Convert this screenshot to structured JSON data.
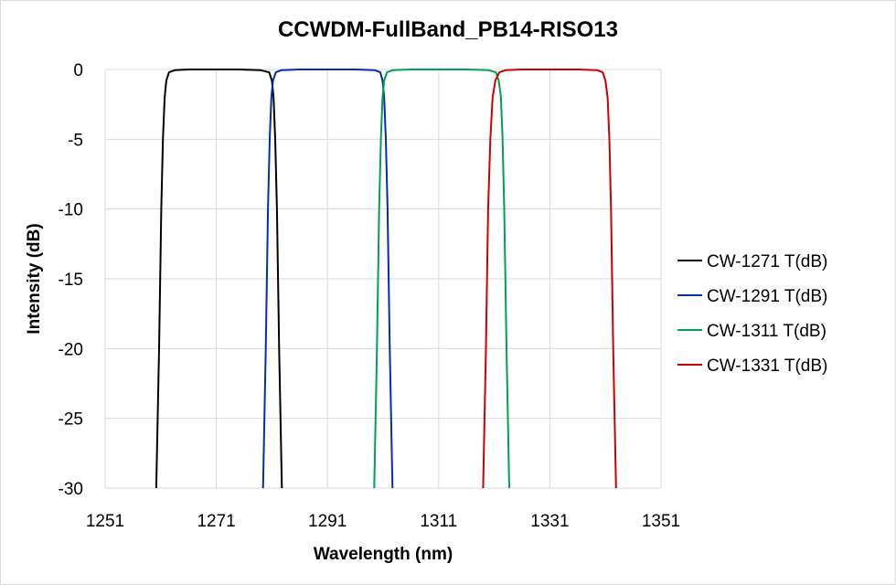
{
  "chart_data": {
    "type": "line",
    "title": "CCWDM-FullBand_PB14-RISO13",
    "xlabel": "Wavelength (nm)",
    "ylabel": "Intensity (dB)",
    "xlim": [
      1251,
      1351
    ],
    "ylim": [
      -30,
      0
    ],
    "xticks": [
      1251,
      1271,
      1291,
      1311,
      1331,
      1351
    ],
    "yticks": [
      0,
      -5,
      -10,
      -15,
      -20,
      -25,
      -30
    ],
    "grid": true,
    "legend_position": "right",
    "series": [
      {
        "name": "CW-1271 T(dB)",
        "color": "#000000",
        "x": [
          1260.2,
          1260.7,
          1261.1,
          1261.4,
          1261.7,
          1262.0,
          1262.5,
          1263.5,
          1266,
          1270,
          1275,
          1279,
          1280.5,
          1281.0,
          1281.3,
          1281.6,
          1281.9,
          1282.3,
          1282.8
        ],
        "y": [
          -30,
          -20,
          -10,
          -5,
          -2,
          -0.8,
          -0.2,
          -0.05,
          0,
          0,
          0,
          -0.05,
          -0.2,
          -0.8,
          -2,
          -5,
          -10,
          -20,
          -30
        ]
      },
      {
        "name": "CW-1291 T(dB)",
        "color": "#002fa7",
        "x": [
          1279.4,
          1279.9,
          1280.3,
          1280.6,
          1280.9,
          1281.2,
          1281.7,
          1282.7,
          1286,
          1291,
          1296,
          1299.5,
          1300.5,
          1300.9,
          1301.2,
          1301.5,
          1301.8,
          1302.2,
          1302.7
        ],
        "y": [
          -30,
          -20,
          -10,
          -5,
          -2,
          -0.8,
          -0.2,
          -0.05,
          0,
          0,
          0,
          -0.05,
          -0.2,
          -0.8,
          -2,
          -5,
          -10,
          -20,
          -30
        ]
      },
      {
        "name": "CW-1311 T(dB)",
        "color": "#00a050",
        "x": [
          1299.4,
          1299.9,
          1300.3,
          1300.6,
          1300.9,
          1301.2,
          1301.7,
          1302.7,
          1306,
          1311,
          1316,
          1320,
          1321.3,
          1321.8,
          1322.2,
          1322.5,
          1322.8,
          1323.2,
          1323.7
        ],
        "y": [
          -30,
          -20,
          -10,
          -5,
          -2,
          -0.8,
          -0.2,
          -0.05,
          0,
          0,
          0,
          -0.05,
          -0.2,
          -0.8,
          -2,
          -5,
          -10,
          -20,
          -30
        ]
      },
      {
        "name": "CW-1331 T(dB)",
        "color": "#cc0000",
        "x": [
          1319.0,
          1319.5,
          1319.9,
          1320.3,
          1320.7,
          1321.2,
          1321.9,
          1323.0,
          1326,
          1331,
          1336,
          1339.5,
          1340.5,
          1341.0,
          1341.4,
          1341.7,
          1342.0,
          1342.4,
          1342.9
        ],
        "y": [
          -30,
          -20,
          -10,
          -5,
          -2,
          -0.8,
          -0.2,
          -0.05,
          0,
          0,
          0,
          -0.05,
          -0.2,
          -0.8,
          -2,
          -5,
          -10,
          -20,
          -30
        ]
      }
    ]
  }
}
